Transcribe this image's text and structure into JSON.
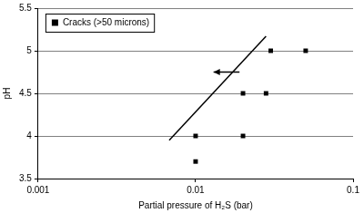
{
  "chart_data": {
    "type": "scatter",
    "x_label": "Partial pressure of H₂S (bar)",
    "y_label": "pH",
    "log": "x",
    "grid": "y",
    "legend": "upper left",
    "xlim": [
      0.001,
      0.1
    ],
    "xticks": [
      0.001,
      0.01,
      0.1
    ],
    "ylim": [
      3.5,
      5.5
    ],
    "yticks": [
      3.5,
      4,
      4.5,
      5,
      5.5
    ],
    "series": [
      {
        "name": "Cracks (>50 microns)",
        "type": "scatter",
        "color": "#000000",
        "marker": "square",
        "x": [
          0.01,
          0.01,
          0.02,
          0.02,
          0.028,
          0.03,
          0.05
        ],
        "values": [
          3.7,
          4.0,
          4.0,
          4.5,
          4.5,
          5.0,
          5.0
        ]
      },
      {
        "type": "line",
        "color": "#000000",
        "marker": "none",
        "line_style": "solid",
        "x": [
          0.0068,
          0.028
        ],
        "values": [
          3.95,
          5.17
        ]
      },
      {
        "type": "line",
        "color": "#000000",
        "marker": "none",
        "line_style": "arrow",
        "x": [
          0.019,
          0.013
        ],
        "values": [
          4.75,
          4.75
        ]
      }
    ]
  }
}
